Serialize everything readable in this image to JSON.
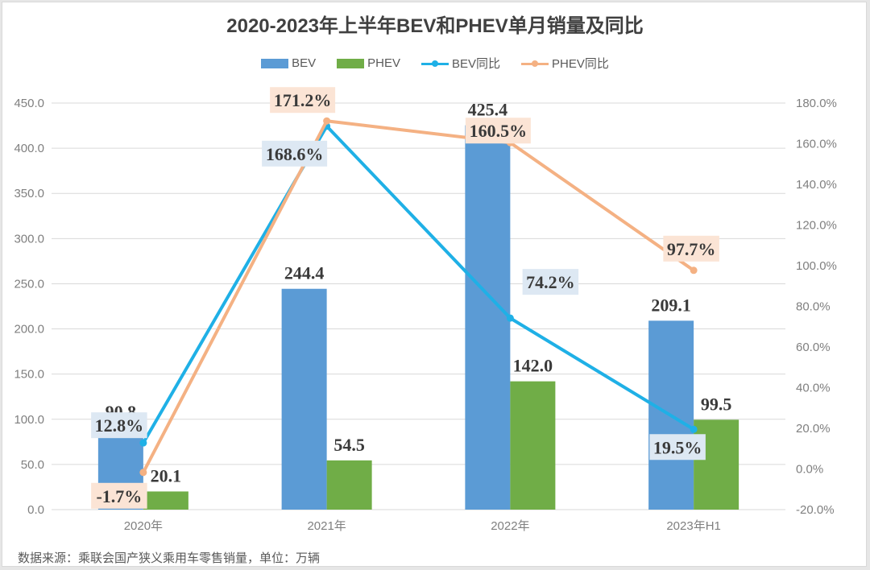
{
  "chart_data": {
    "type": "bar",
    "title": "2020-2023年上半年BEV和PHEV单月销量及同比",
    "categories": [
      "2020年",
      "2021年",
      "2022年",
      "2023年H1"
    ],
    "series": [
      {
        "name": "BEV",
        "kind": "bar",
        "axis": "left",
        "color": "#5b9bd5",
        "values": [
          90.8,
          244.4,
          425.4,
          209.1
        ],
        "labels": [
          "90.8",
          "244.4",
          "425.4",
          "209.1"
        ]
      },
      {
        "name": "PHEV",
        "kind": "bar",
        "axis": "left",
        "color": "#70ad47",
        "values": [
          20.1,
          54.5,
          142.0,
          99.5
        ],
        "labels": [
          "20.1",
          "54.5",
          "142.0",
          "99.5"
        ]
      },
      {
        "name": "BEV同比",
        "kind": "line",
        "axis": "right",
        "color": "#1fb0e6",
        "label_bg": "#dde8f3",
        "values": [
          12.8,
          168.6,
          74.2,
          19.5
        ],
        "labels": [
          "12.8%",
          "168.6%",
          "74.2%",
          "19.5%"
        ]
      },
      {
        "name": "PHEV同比",
        "kind": "line",
        "axis": "right",
        "color": "#f4b183",
        "label_bg": "#fbe4d5",
        "values": [
          -1.7,
          171.2,
          160.5,
          97.7
        ],
        "labels": [
          "-1.7%",
          "171.2%",
          "160.5%",
          "97.7%"
        ]
      }
    ],
    "ylim_left": [
      0,
      450
    ],
    "yticks_left": [
      "0.0",
      "50.0",
      "100.0",
      "150.0",
      "200.0",
      "250.0",
      "300.0",
      "350.0",
      "400.0",
      "450.0"
    ],
    "ylim_right": [
      -20,
      180
    ],
    "yticks_right": [
      "-20.0%",
      "0.0%",
      "20.0%",
      "40.0%",
      "60.0%",
      "80.0%",
      "100.0%",
      "120.0%",
      "140.0%",
      "160.0%",
      "180.0%"
    ],
    "grid": true,
    "legend_position": "top-center",
    "source_note": "数据来源：乘联会国产狭义乘用车零售销量，单位：万辆"
  }
}
